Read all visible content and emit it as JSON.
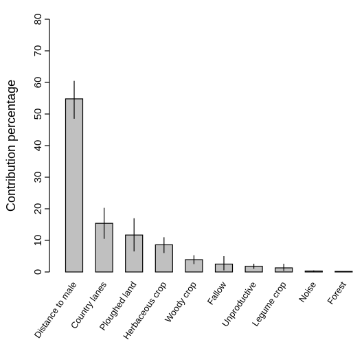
{
  "chart_data": {
    "type": "bar",
    "title": "",
    "xlabel": "",
    "ylabel": "Contribution percentage",
    "ylim": [
      0,
      80
    ],
    "yticks": [
      0,
      10,
      20,
      30,
      40,
      50,
      60,
      70,
      80
    ],
    "grid": false,
    "categories": [
      "Distance to male",
      "Country lanes",
      "Ploughed land",
      "Herbaceous crop",
      "Woody crop",
      "Fallow",
      "Unproductive",
      "Legume crop",
      "Noise",
      "Forest"
    ],
    "values": [
      54.8,
      15.4,
      11.7,
      8.6,
      3.9,
      2.5,
      1.8,
      1.3,
      0.3,
      0.0
    ],
    "error_low": [
      48.5,
      10.5,
      6.5,
      6.0,
      2.5,
      0.5,
      1.0,
      0.3,
      0.1,
      0.0
    ],
    "error_high": [
      60.5,
      20.3,
      17.0,
      11.0,
      5.3,
      5.0,
      2.6,
      2.6,
      0.5,
      0.0
    ],
    "bar_color": "#c0c0c0"
  }
}
